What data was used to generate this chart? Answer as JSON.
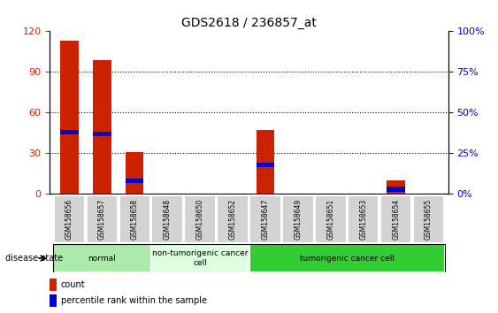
{
  "title": "GDS2618 / 236857_at",
  "samples": [
    "GSM158656",
    "GSM158657",
    "GSM158658",
    "GSM158648",
    "GSM158650",
    "GSM158652",
    "GSM158647",
    "GSM158649",
    "GSM158651",
    "GSM158653",
    "GSM158654",
    "GSM158655"
  ],
  "counts": [
    113,
    99,
    31,
    0,
    0,
    0,
    47,
    0,
    0,
    0,
    10,
    0
  ],
  "percentiles": [
    38,
    37,
    8,
    0,
    0,
    0,
    18,
    0,
    0,
    0,
    3,
    0
  ],
  "ylim_left": [
    0,
    120
  ],
  "ylim_right": [
    0,
    100
  ],
  "yticks_left": [
    0,
    30,
    60,
    90,
    120
  ],
  "yticks_right": [
    0,
    25,
    50,
    75,
    100
  ],
  "ytick_labels_right": [
    "0%",
    "25%",
    "50%",
    "75%",
    "100%"
  ],
  "groups": [
    {
      "label": "normal",
      "start": 0,
      "end": 3,
      "color": "#aaeaaa"
    },
    {
      "label": "non-tumorigenic cancer\ncell",
      "start": 3,
      "end": 6,
      "color": "#ddffdd"
    },
    {
      "label": "tumorigenic cancer cell",
      "start": 6,
      "end": 12,
      "color": "#33cc33"
    }
  ],
  "disease_state_label": "disease state",
  "bar_color_count": "#cc2200",
  "bar_color_percentile": "#0000cc",
  "background_color": "#ffffff",
  "tick_label_color_left": "#cc2200",
  "tick_label_color_right": "#0000cc",
  "grid_color": "#000000",
  "bar_width": 0.55,
  "blue_bar_height": 3.5
}
